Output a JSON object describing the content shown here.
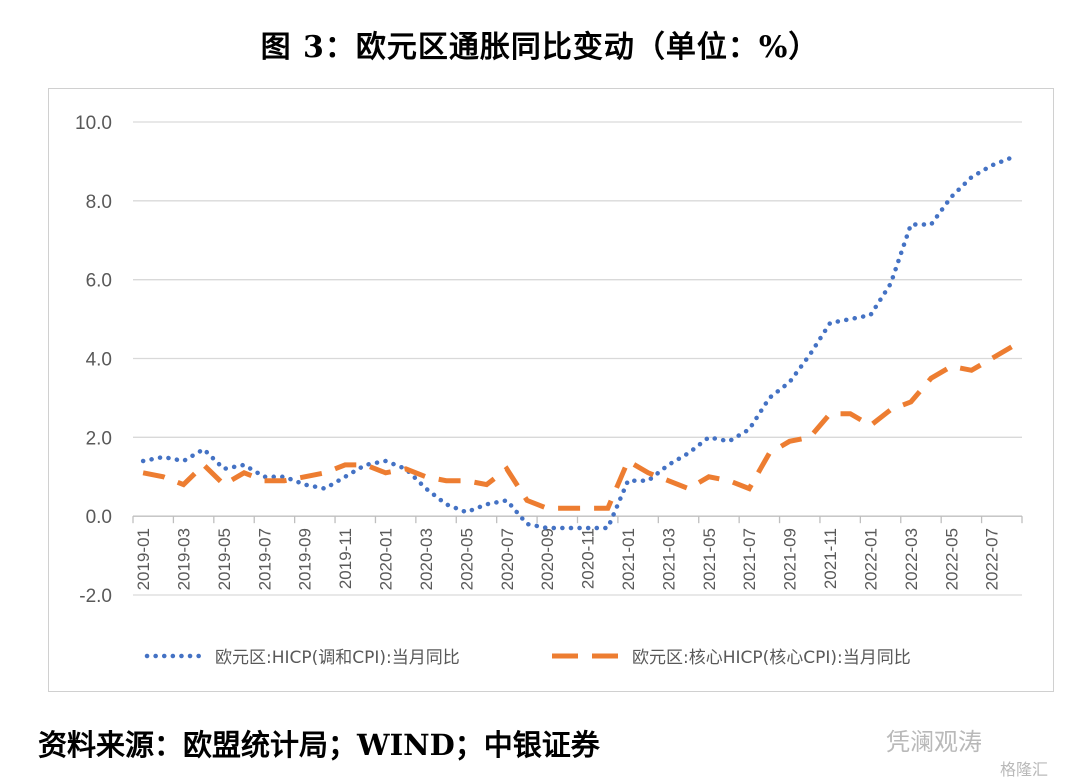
{
  "title": "图 3：欧元区通胀同比变动（单位：%）",
  "source": "资料来源：欧盟统计局；WIND；中银证券",
  "watermark": {
    "account": "凭澜观涛",
    "brand": "格隆汇"
  },
  "chart_data": {
    "type": "line",
    "ylim": [
      -2.0,
      10.0
    ],
    "yticks": [
      "-2.0",
      "0.0",
      "2.0",
      "4.0",
      "6.0",
      "8.0",
      "10.0"
    ],
    "ytick_values": [
      -2,
      0,
      2,
      4,
      6,
      8,
      10
    ],
    "x": [
      "2019-01",
      "2019-02",
      "2019-03",
      "2019-04",
      "2019-05",
      "2019-06",
      "2019-07",
      "2019-08",
      "2019-09",
      "2019-10",
      "2019-11",
      "2019-12",
      "2020-01",
      "2020-02",
      "2020-03",
      "2020-04",
      "2020-05",
      "2020-06",
      "2020-07",
      "2020-08",
      "2020-09",
      "2020-10",
      "2020-11",
      "2020-12",
      "2021-01",
      "2021-02",
      "2021-03",
      "2021-04",
      "2021-05",
      "2021-06",
      "2021-07",
      "2021-08",
      "2021-09",
      "2021-10",
      "2021-11",
      "2021-12",
      "2022-01",
      "2022-02",
      "2022-03",
      "2022-04",
      "2022-05",
      "2022-06",
      "2022-07",
      "2022-08"
    ],
    "xtick_labels": [
      "2019-01",
      "2019-03",
      "2019-05",
      "2019-07",
      "2019-09",
      "2019-11",
      "2020-01",
      "2020-03",
      "2020-05",
      "2020-07",
      "2020-09",
      "2020-11",
      "2021-01",
      "2021-03",
      "2021-05",
      "2021-07",
      "2021-09",
      "2021-11",
      "2022-01",
      "2022-03",
      "2022-05",
      "2022-07"
    ],
    "grid": true,
    "legend_position": "bottom",
    "series": [
      {
        "name": "欧元区:HICP(调和CPI):当月同比",
        "color": "#4472c4",
        "style": "dotted",
        "values": [
          1.4,
          1.5,
          1.4,
          1.7,
          1.2,
          1.3,
          1.0,
          1.0,
          0.8,
          0.7,
          1.0,
          1.3,
          1.4,
          1.2,
          0.7,
          0.3,
          0.1,
          0.3,
          0.4,
          -0.2,
          -0.3,
          -0.3,
          -0.3,
          -0.3,
          0.9,
          0.9,
          1.3,
          1.6,
          2.0,
          1.9,
          2.2,
          3.0,
          3.4,
          4.1,
          4.9,
          5.0,
          5.1,
          5.9,
          7.4,
          7.4,
          8.1,
          8.6,
          8.9,
          9.1
        ]
      },
      {
        "name": "欧元区:核心HICP(核心CPI):当月同比",
        "color": "#ed7d31",
        "style": "dashed",
        "values": [
          1.1,
          1.0,
          0.8,
          1.3,
          0.8,
          1.1,
          0.9,
          0.9,
          1.0,
          1.1,
          1.3,
          1.3,
          1.1,
          1.2,
          1.0,
          0.9,
          0.9,
          0.8,
          1.2,
          0.4,
          0.2,
          0.2,
          0.2,
          0.2,
          1.4,
          1.1,
          0.9,
          0.7,
          1.0,
          0.9,
          0.7,
          1.6,
          1.9,
          2.0,
          2.6,
          2.6,
          2.3,
          2.7,
          2.9,
          3.5,
          3.8,
          3.7,
          4.0,
          4.3
        ]
      }
    ]
  }
}
